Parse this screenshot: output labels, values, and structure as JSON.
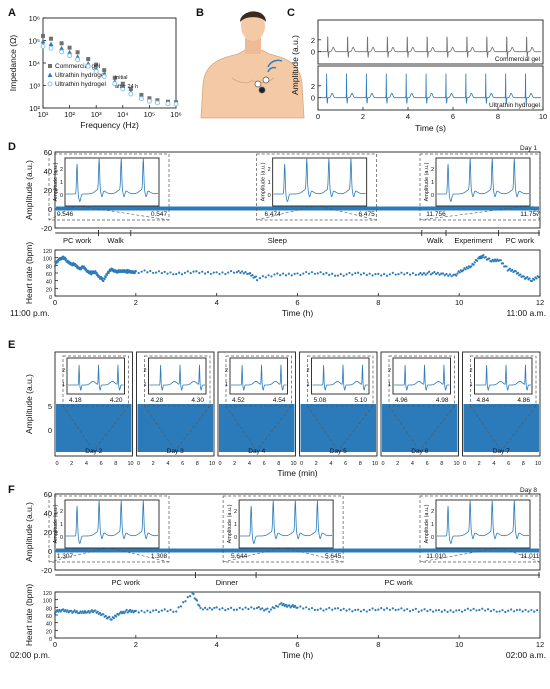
{
  "panels": {
    "A": "A",
    "B": "B",
    "C": "C",
    "D": "D",
    "E": "E",
    "F": "F"
  },
  "colors": {
    "blue": "#2b7bba",
    "gray": "#707070",
    "light": "#7fc2e8",
    "dark": "#222222"
  },
  "chart_data": [
    {
      "id": "A",
      "type": "scatter",
      "xlabel": "Frequency (Hz)",
      "ylabel": "Impedance (Ω)",
      "x_log": true,
      "y_log": true,
      "xlim": [
        10,
        1000000
      ],
      "ylim": [
        100,
        1000000
      ],
      "xticks": [
        "10¹",
        "10²",
        "10³",
        "10⁴",
        "10⁵",
        "10⁶"
      ],
      "yticks": [
        "10²",
        "10³",
        "10⁴",
        "10⁵",
        "10⁶"
      ],
      "x": [
        10,
        20,
        50,
        100,
        200,
        500,
        1000,
        2000,
        5000,
        10000,
        20000,
        50000,
        100000,
        200000,
        500000,
        1000000
      ],
      "series": [
        {
          "name": "Commercial gel",
          "marker": "square",
          "color": "#707070",
          "values": [
            160000,
            120000,
            75000,
            48000,
            30000,
            15000,
            8500,
            4800,
            2200,
            1200,
            700,
            380,
            270,
            220,
            190,
            180
          ]
        },
        {
          "name": "Ultrathin hydrogel",
          "name_sub": "initial",
          "marker": "triangle",
          "color": "#2b7bba",
          "values": [
            90000,
            70000,
            45000,
            30000,
            19000,
            9500,
            5500,
            3200,
            1500,
            850,
            500,
            290,
            220,
            185,
            165,
            160
          ]
        },
        {
          "name": "Ultrathin hydrogel",
          "name_sub": "after 24 h",
          "marker": "circle",
          "color": "#7fc2e8",
          "values": [
            55000,
            45000,
            31000,
            21000,
            14000,
            7200,
            4200,
            2500,
            1200,
            700,
            420,
            260,
            200,
            170,
            155,
            150
          ]
        }
      ]
    },
    {
      "id": "C",
      "type": "line",
      "xlabel": "Time (s)",
      "ylabel": "Amplitude (a.u.)",
      "xlim": [
        0,
        10
      ],
      "xticks": [
        "0",
        "2",
        "4",
        "6",
        "8",
        "10"
      ],
      "yticks": [
        "0",
        "2"
      ],
      "series": [
        {
          "name": "Commercial gel",
          "color": "#707070",
          "beat_times": [
            0.35,
            1.25,
            2.15,
            3.05,
            3.95,
            4.85,
            5.75,
            6.65,
            7.55,
            8.45,
            9.35
          ]
        },
        {
          "name": "Ultrathin hydrogel",
          "color": "#2b7bba",
          "beat_times": [
            0.3,
            1.2,
            2.1,
            3.0,
            3.9,
            4.8,
            5.7,
            6.6,
            7.5,
            8.4,
            9.3
          ]
        }
      ]
    },
    {
      "id": "D",
      "type": "line",
      "title": "Day 1",
      "xlabel": "Time (h)",
      "ylabel": "Amplitude (a.u.)",
      "ylabel2": "Heart rate (bpm)",
      "xlim": [
        0,
        12
      ],
      "xticks": [
        "0",
        "2",
        "4",
        "6",
        "8",
        "10",
        "12"
      ],
      "amp_yticks": [
        "-20",
        "0",
        "20",
        "40",
        "60"
      ],
      "amp_ylim": [
        -20,
        60
      ],
      "hr_yticks": [
        "0",
        "20",
        "40",
        "60",
        "80",
        "100",
        "120"
      ],
      "hr_ylim": [
        0,
        120
      ],
      "start_label": "11:00 p.m.",
      "end_label": "11:00 a.m.",
      "insets": [
        {
          "at": 0.546,
          "left": "0.546",
          "right": "0.547"
        },
        {
          "at": 6.474,
          "left": "6.474",
          "right": "6.475"
        },
        {
          "at": 11.756,
          "left": "11.756",
          "right": "11.757"
        }
      ],
      "inset_yticks": [
        "0",
        "1",
        "2"
      ],
      "inset_ylabel": "Amplitude (a.u.)",
      "activities": [
        {
          "label": "PC work",
          "start": 0,
          "end": 1.1
        },
        {
          "label": "Walk",
          "start": 1.1,
          "end": 1.9
        },
        {
          "label": "Sleep",
          "start": 1.9,
          "end": 9.1
        },
        {
          "label": "Walk",
          "start": 9.1,
          "end": 9.7
        },
        {
          "label": "Experiment",
          "start": 9.7,
          "end": 11.0
        },
        {
          "label": "PC work",
          "start": 11.0,
          "end": 12
        }
      ],
      "heart_rate": {
        "x": [
          0,
          0.1,
          0.2,
          0.3,
          0.4,
          0.5,
          0.6,
          0.7,
          0.8,
          0.9,
          1.0,
          1.1,
          1.2,
          1.3,
          1.4,
          1.5,
          1.6,
          1.7,
          1.8,
          1.9,
          2.0,
          2.5,
          3.0,
          3.5,
          4.0,
          4.5,
          4.8,
          5.0,
          5.5,
          6.0,
          6.5,
          7.0,
          7.5,
          8.0,
          8.5,
          9.0,
          9.3,
          9.6,
          9.9,
          10.1,
          10.3,
          10.5,
          10.6,
          10.8,
          11.0,
          11.2,
          11.4,
          11.6,
          11.8,
          12.0
        ],
        "y": [
          82,
          95,
          102,
          90,
          85,
          80,
          72,
          75,
          65,
          60,
          62,
          50,
          40,
          62,
          68,
          65,
          63,
          66,
          64,
          62,
          64,
          62,
          60,
          61,
          60,
          62,
          60,
          45,
          56,
          58,
          60,
          56,
          57,
          56,
          57,
          58,
          60,
          56,
          55,
          68,
          80,
          98,
          105,
          90,
          95,
          70,
          62,
          50,
          40,
          55
        ]
      }
    },
    {
      "id": "E",
      "type": "line",
      "xlabel": "Time (min)",
      "ylabel": "Amplitude (a.u.)",
      "xticks": [
        "0",
        "2",
        "4",
        "6",
        "8",
        "10"
      ],
      "yticks": [
        "0",
        "5"
      ],
      "days": [
        {
          "day": "Day 2",
          "left": "4.18",
          "right": "4.20"
        },
        {
          "day": "Day 3",
          "left": "4.28",
          "right": "4.30"
        },
        {
          "day": "Day 4",
          "left": "4.52",
          "right": "4.54"
        },
        {
          "day": "Day 5",
          "left": "5.08",
          "right": "5.10"
        },
        {
          "day": "Day 6",
          "left": "4.96",
          "right": "4.98"
        },
        {
          "day": "Day 7",
          "left": "4.84",
          "right": "4.86"
        }
      ],
      "inset_yticks": [
        "1",
        "2"
      ]
    },
    {
      "id": "F",
      "type": "line",
      "title": "Day 8",
      "xlabel": "Time (h)",
      "ylabel": "Amplitude (a.u.)",
      "ylabel2": "Heart rate (bpm)",
      "xlim": [
        0,
        12
      ],
      "xticks": [
        "0",
        "2",
        "4",
        "6",
        "8",
        "10",
        "12"
      ],
      "amp_yticks": [
        "-20",
        "0",
        "20",
        "40",
        "60"
      ],
      "amp_ylim": [
        -20,
        60
      ],
      "hr_yticks": [
        "0",
        "20",
        "40",
        "60",
        "80",
        "100",
        "120"
      ],
      "hr_ylim": [
        0,
        120
      ],
      "start_label": "02:00 p.m.",
      "end_label": "02:00 a.m.",
      "insets": [
        {
          "at": 1.307,
          "left": "1.307",
          "right": "1.308"
        },
        {
          "at": 5.644,
          "left": "5.644",
          "right": "5.645"
        },
        {
          "at": 11.01,
          "left": "11.010",
          "right": "11.011"
        }
      ],
      "inset_yticks": [
        "0",
        "1",
        "2"
      ],
      "inset_ylabel": "Amplitude (a.u.)",
      "activities": [
        {
          "label": "PC work",
          "start": 0,
          "end": 3.5
        },
        {
          "label": "Dinner",
          "start": 3.5,
          "end": 5.0
        },
        {
          "label": "PC work",
          "start": 5.0,
          "end": 12
        }
      ],
      "heart_rate": {
        "x": [
          0,
          0.2,
          0.4,
          0.6,
          0.8,
          1.0,
          1.2,
          1.4,
          1.6,
          1.8,
          2.0,
          2.5,
          3.0,
          3.4,
          3.6,
          4.0,
          4.5,
          5.0,
          5.3,
          5.6,
          5.8,
          6.0,
          6.5,
          7.0,
          7.5,
          8.0,
          8.5,
          9.0,
          9.5,
          10.0,
          10.5,
          11.0,
          11.5,
          12.0
        ],
        "y": [
          68,
          72,
          70,
          66,
          70,
          68,
          60,
          48,
          66,
          70,
          68,
          72,
          70,
          120,
          75,
          78,
          74,
          80,
          72,
          88,
          84,
          80,
          76,
          74,
          72,
          74,
          76,
          72,
          70,
          72,
          74,
          72,
          70,
          72
        ]
      }
    }
  ]
}
